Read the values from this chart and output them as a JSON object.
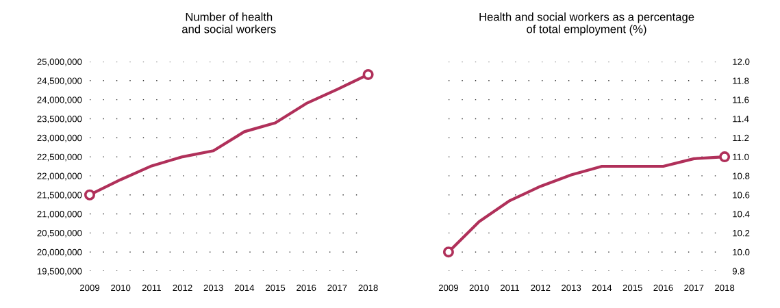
{
  "chart_data": [
    {
      "type": "line",
      "title": "Number of health\nand social workers",
      "x": [
        2009,
        2010,
        2011,
        2012,
        2013,
        2014,
        2015,
        2016,
        2017,
        2018
      ],
      "series": [
        {
          "color": "#b0305a",
          "values": [
            21500000,
            21900000,
            22260000,
            22500000,
            22660000,
            23160000,
            23390000,
            23900000,
            24270000,
            24660000
          ]
        },
        {
          "type": "scatter",
          "color": "#b0305a",
          "values": [
            21500000,
            null,
            null,
            null,
            null,
            null,
            null,
            null,
            null,
            24660000
          ]
        }
      ],
      "xlim": [
        2009,
        2018
      ],
      "xticks": [
        2009,
        2010,
        2011,
        2012,
        2013,
        2014,
        2015,
        2016,
        2017,
        2018
      ],
      "ylim": [
        19500000,
        25000000
      ],
      "yticks": [
        {
          "value": 19500000,
          "label": "19,500,000"
        },
        {
          "value": 20000000,
          "label": "20,000,000"
        },
        {
          "value": 20500000,
          "label": "20,500,000"
        },
        {
          "value": 21000000,
          "label": "21,000,000"
        },
        {
          "value": 21500000,
          "label": "21,500,000"
        },
        {
          "value": 22000000,
          "label": "22,000,000"
        },
        {
          "value": 22500000,
          "label": "22,500,000"
        },
        {
          "value": 23000000,
          "label": "23,000,000"
        },
        {
          "value": 23500000,
          "label": "23,500,000"
        },
        {
          "value": 24000000,
          "label": "24,000,000"
        },
        {
          "value": 24500000,
          "label": "24,500,000"
        },
        {
          "value": 25000000,
          "label": "25,000,000"
        }
      ],
      "grid": "y",
      "line_style": "solid",
      "legend": false
    },
    {
      "type": "line",
      "title": "Health and social workers as a percentage\nof total employment (%)",
      "x": [
        2009,
        2010,
        2011,
        2012,
        2013,
        2014,
        2015,
        2016,
        2017,
        2018
      ],
      "series": [
        {
          "color": "#b0305a",
          "axis": "y2",
          "values": [
            10.0,
            10.32,
            10.54,
            10.69,
            10.81,
            10.9,
            10.9,
            10.9,
            10.98,
            11.0
          ]
        },
        {
          "type": "scatter",
          "color": "#b0305a",
          "axis": "y2",
          "values": [
            10.0,
            null,
            null,
            null,
            null,
            null,
            null,
            null,
            null,
            11.0
          ]
        }
      ],
      "xlim": [
        2009,
        2018
      ],
      "xticks": [
        2009,
        2010,
        2011,
        2012,
        2013,
        2014,
        2015,
        2016,
        2017,
        2018
      ],
      "y2lim": [
        9.8,
        12.0
      ],
      "y2ticks": [
        {
          "value": 9.8,
          "label": "9.8"
        },
        {
          "value": 10.0,
          "label": "10.0"
        },
        {
          "value": 10.2,
          "label": "10.2"
        },
        {
          "value": 10.4,
          "label": "10.4"
        },
        {
          "value": 10.6,
          "label": "10.6"
        },
        {
          "value": 10.8,
          "label": "10.8"
        },
        {
          "value": 11.0,
          "label": "11.0"
        },
        {
          "value": 11.2,
          "label": "11.2"
        },
        {
          "value": 11.4,
          "label": "11.4"
        },
        {
          "value": 11.6,
          "label": "11.6"
        },
        {
          "value": 11.8,
          "label": "11.8"
        },
        {
          "value": 12.0,
          "label": "12.0"
        }
      ],
      "grid": "y",
      "line_style": "solid",
      "legend": false
    }
  ]
}
